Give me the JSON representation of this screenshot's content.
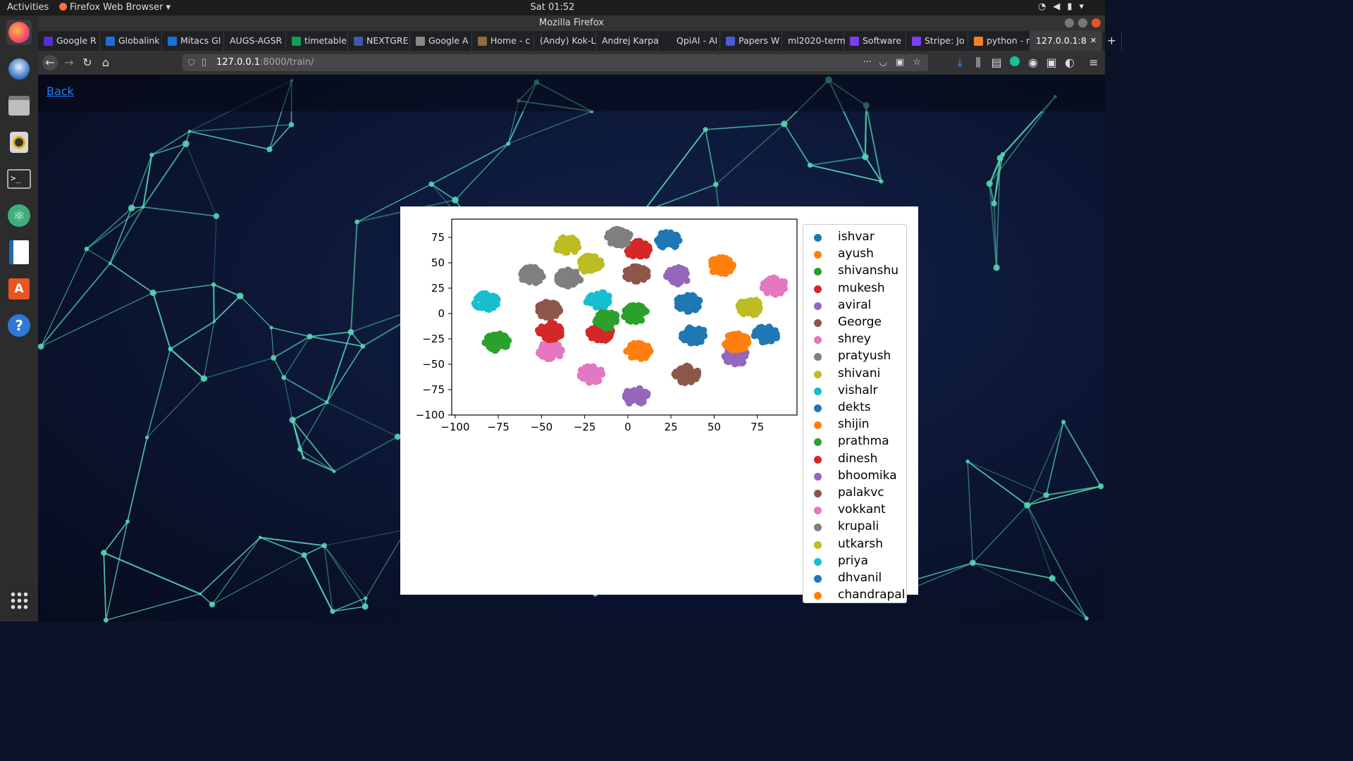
{
  "system": {
    "activities": "Activities",
    "app_menu": "Firefox Web Browser ▾",
    "clock": "Sat 01:52",
    "window_title": "Mozilla Firefox"
  },
  "colors": {
    "tab10": [
      "#1f77b4",
      "#ff7f0e",
      "#2ca02c",
      "#d62728",
      "#9467bd",
      "#8c564b",
      "#e377c2",
      "#7f7f7f",
      "#bcbd22",
      "#17becf"
    ],
    "network_line": "#56d6b4",
    "link": "#1a82ff"
  },
  "tabs": [
    {
      "label": "Google R",
      "icon": "google-icon",
      "color": "#5b2bd6"
    },
    {
      "label": "Globalink",
      "icon": "mitacs-icon",
      "color": "#1a6fd6"
    },
    {
      "label": "Mitacs Gl",
      "icon": "mitacs-icon",
      "color": "#1a6fd6"
    },
    {
      "label": "AUGS-AGSR",
      "icon": "",
      "color": "#202124"
    },
    {
      "label": "timetable",
      "icon": "sheets-icon",
      "color": "#0f9d58"
    },
    {
      "label": "NEXTGRE",
      "icon": "nextgre-icon",
      "color": "#3b5ba9"
    },
    {
      "label": "Google A",
      "icon": "google-icon",
      "color": "#888888"
    },
    {
      "label": "Home - c",
      "icon": "home-icon",
      "color": "#8a6d3b"
    },
    {
      "label": "(Andy) Kok-L",
      "icon": "",
      "color": "#202124"
    },
    {
      "label": "Andrej Karpa",
      "icon": "",
      "color": "#202124"
    },
    {
      "label": "QpiAI - AI",
      "icon": "qpiai-icon",
      "color": "#202124"
    },
    {
      "label": "Papers W",
      "icon": "papers-icon",
      "color": "#4a5bd4"
    },
    {
      "label": "ml2020-term",
      "icon": "",
      "color": "#202124"
    },
    {
      "label": "Software",
      "icon": "stripe-icon",
      "color": "#7a3ff2"
    },
    {
      "label": "Stripe: Jo",
      "icon": "stripe-icon",
      "color": "#7a3ff2"
    },
    {
      "label": "python - r",
      "icon": "stackoverflow-icon",
      "color": "#f48024"
    },
    {
      "label": "127.0.0.1:8",
      "icon": "",
      "color": "#202124",
      "active": true
    }
  ],
  "nav": {
    "url_host": "127.0.0.1",
    "url_rest": ":8000/train/"
  },
  "page": {
    "back_link": "Back"
  },
  "chart_data": {
    "type": "scatter",
    "title": "",
    "xlabel": "",
    "ylabel": "",
    "xlim": [
      -102,
      98
    ],
    "ylim": [
      -100,
      93
    ],
    "xticks": [
      -100,
      -75,
      -50,
      -25,
      0,
      25,
      50,
      75
    ],
    "yticks": [
      75,
      50,
      25,
      0,
      -25,
      -50,
      -75,
      -100
    ],
    "xtick_labels": [
      "−100",
      "−75",
      "−50",
      "−25",
      "0",
      "25",
      "50",
      "75"
    ],
    "ytick_labels": [
      "75",
      "50",
      "25",
      "0",
      "−25",
      "−50",
      "−75",
      "−100"
    ],
    "legend": "right-outside",
    "series": [
      {
        "name": "ishvar",
        "color_index": 0,
        "clusters": [
          [
            23,
            72
          ]
        ]
      },
      {
        "name": "ayush",
        "color_index": 1,
        "clusters": [
          [
            54,
            47
          ]
        ]
      },
      {
        "name": "shivanshu",
        "color_index": 2,
        "clusters": [
          [
            4,
            0
          ]
        ]
      },
      {
        "name": "mukesh",
        "color_index": 3,
        "clusters": [
          [
            6,
            63
          ]
        ]
      },
      {
        "name": "aviral",
        "color_index": 4,
        "clusters": [
          [
            29,
            37
          ]
        ]
      },
      {
        "name": "George",
        "color_index": 5,
        "clusters": [
          [
            5,
            38
          ]
        ]
      },
      {
        "name": "shrey",
        "color_index": 6,
        "clusters": [
          [
            85,
            27
          ]
        ]
      },
      {
        "name": "pratyush",
        "color_index": 7,
        "clusters": [
          [
            -56,
            38
          ]
        ]
      },
      {
        "name": "shivani",
        "color_index": 8,
        "clusters": [
          [
            -35,
            67
          ]
        ]
      },
      {
        "name": "vishalr",
        "color_index": 9,
        "clusters": [
          [
            -82,
            12
          ]
        ]
      },
      {
        "name": "dekts",
        "color_index": 0,
        "clusters": [
          [
            35,
            10
          ]
        ]
      },
      {
        "name": "shijin",
        "color_index": 1,
        "clusters": [
          [
            6,
            -37
          ]
        ]
      },
      {
        "name": "prathma",
        "color_index": 2,
        "clusters": [
          [
            -76,
            -28
          ]
        ]
      },
      {
        "name": "dinesh",
        "color_index": 3,
        "clusters": [
          [
            -16,
            -19
          ]
        ]
      },
      {
        "name": "bhoomika",
        "color_index": 4,
        "clusters": [
          [
            63,
            -42
          ]
        ]
      },
      {
        "name": "palakvc",
        "color_index": 5,
        "clusters": [
          [
            -46,
            3
          ]
        ]
      },
      {
        "name": "vokkant",
        "color_index": 6,
        "clusters": [
          [
            -45,
            -37
          ]
        ]
      },
      {
        "name": "krupali",
        "color_index": 7,
        "clusters": [
          [
            -5,
            75
          ]
        ]
      },
      {
        "name": "utkarsh",
        "color_index": 8,
        "clusters": [
          [
            71,
            6
          ]
        ]
      },
      {
        "name": "priya",
        "color_index": 9,
        "clusters": [
          [
            -17,
            13
          ]
        ]
      },
      {
        "name": "dhvanil",
        "color_index": 0,
        "clusters": [
          [
            80,
            -20
          ]
        ]
      },
      {
        "name": "chandrapal",
        "color_index": 1,
        "clusters": [
          [
            63,
            -28
          ]
        ]
      }
    ],
    "extra_clusters": [
      {
        "color_index": 7,
        "center": [
          -34,
          35
        ]
      },
      {
        "color_index": 8,
        "center": [
          -22,
          49
        ]
      },
      {
        "color_index": 4,
        "center": [
          5,
          -82
        ]
      },
      {
        "color_index": 0,
        "center": [
          38,
          -21
        ]
      },
      {
        "color_index": 5,
        "center": [
          34,
          -60
        ]
      },
      {
        "color_index": 6,
        "center": [
          -21,
          -60
        ]
      },
      {
        "color_index": 2,
        "center": [
          -12,
          -6
        ]
      },
      {
        "color_index": 3,
        "center": [
          -45,
          -18
        ]
      }
    ]
  }
}
